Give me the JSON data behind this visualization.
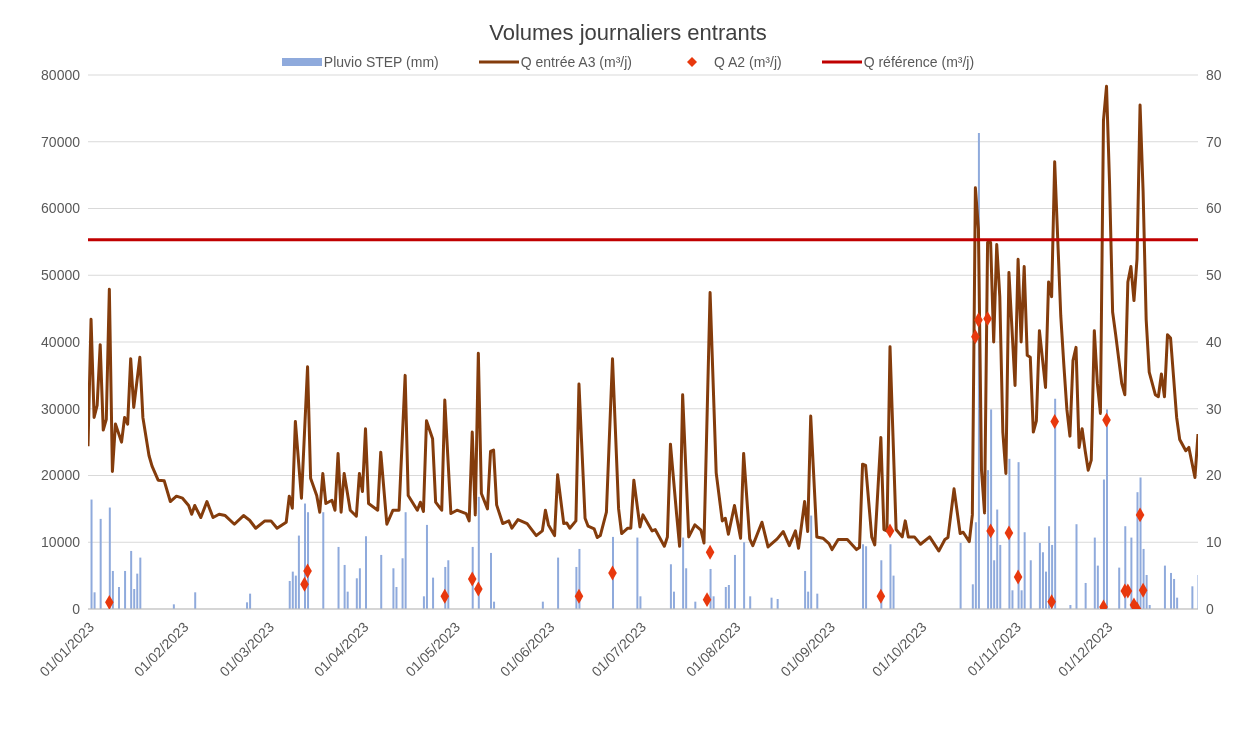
{
  "chart_data": {
    "type": "line",
    "title": "Volumes journaliers entrants",
    "xlim": [
      "2023-01-01",
      "2023-12-31"
    ],
    "xticks": [
      {
        "value": "2023-01-01",
        "label": "01/01/2023"
      },
      {
        "value": "2023-02-01",
        "label": "01/02/2023"
      },
      {
        "value": "2023-03-01",
        "label": "01/03/2023"
      },
      {
        "value": "2023-04-01",
        "label": "01/04/2023"
      },
      {
        "value": "2023-05-01",
        "label": "01/05/2023"
      },
      {
        "value": "2023-06-01",
        "label": "01/06/2023"
      },
      {
        "value": "2023-07-01",
        "label": "01/07/2023"
      },
      {
        "value": "2023-08-01",
        "label": "01/08/2023"
      },
      {
        "value": "2023-09-01",
        "label": "01/09/2023"
      },
      {
        "value": "2023-10-01",
        "label": "01/10/2023"
      },
      {
        "value": "2023-11-01",
        "label": "01/11/2023"
      },
      {
        "value": "2023-12-01",
        "label": "01/12/2023"
      }
    ],
    "ylim": [
      0,
      80000
    ],
    "yticks": [
      0,
      10000,
      20000,
      30000,
      40000,
      50000,
      60000,
      70000,
      80000
    ],
    "y2lim": [
      0,
      80
    ],
    "y2ticks": [
      0,
      10,
      20,
      30,
      40,
      50,
      60,
      70,
      80
    ],
    "grid": "y",
    "legend": "top",
    "marker": "none",
    "line_style": "solid",
    "series": [
      {
        "name": "Pluvio STEP (mm)",
        "type": "bar",
        "axis": "y2",
        "color": "#8faadc",
        "x": [
          "2023-01-02",
          "2023-01-03",
          "2023-01-05",
          "2023-01-08",
          "2023-01-09",
          "2023-01-11",
          "2023-01-13",
          "2023-01-15",
          "2023-01-16",
          "2023-01-17",
          "2023-01-18",
          "2023-01-29",
          "2023-02-05",
          "2023-02-22",
          "2023-02-23",
          "2023-03-08",
          "2023-03-09",
          "2023-03-10",
          "2023-03-11",
          "2023-03-13",
          "2023-03-14",
          "2023-03-19",
          "2023-03-24",
          "2023-03-26",
          "2023-03-27",
          "2023-03-30",
          "2023-03-31",
          "2023-04-02",
          "2023-04-07",
          "2023-04-11",
          "2023-04-12",
          "2023-04-14",
          "2023-04-15",
          "2023-04-21",
          "2023-04-22",
          "2023-04-24",
          "2023-04-28",
          "2023-04-29",
          "2023-05-07",
          "2023-05-09",
          "2023-05-13",
          "2023-05-14",
          "2023-05-30",
          "2023-06-04",
          "2023-06-10",
          "2023-06-11",
          "2023-06-22",
          "2023-06-30",
          "2023-07-01",
          "2023-07-11",
          "2023-07-12",
          "2023-07-15",
          "2023-07-16",
          "2023-07-19",
          "2023-07-24",
          "2023-07-25",
          "2023-07-29",
          "2023-07-30",
          "2023-08-01",
          "2023-08-04",
          "2023-08-06",
          "2023-08-13",
          "2023-08-15",
          "2023-08-24",
          "2023-08-25",
          "2023-08-26",
          "2023-08-28",
          "2023-09-12",
          "2023-09-13",
          "2023-09-18",
          "2023-09-21",
          "2023-09-22",
          "2023-10-14",
          "2023-10-18",
          "2023-10-19",
          "2023-10-20",
          "2023-10-23",
          "2023-10-24",
          "2023-10-25",
          "2023-10-26",
          "2023-10-27",
          "2023-10-30",
          "2023-10-31",
          "2023-11-02",
          "2023-11-03",
          "2023-11-04",
          "2023-11-06",
          "2023-11-09",
          "2023-11-10",
          "2023-11-11",
          "2023-11-12",
          "2023-11-13",
          "2023-11-14",
          "2023-11-19",
          "2023-11-21",
          "2023-11-24",
          "2023-11-27",
          "2023-11-28",
          "2023-11-30",
          "2023-12-01",
          "2023-12-05",
          "2023-12-07",
          "2023-12-09",
          "2023-12-11",
          "2023-12-12",
          "2023-12-13",
          "2023-12-14",
          "2023-12-15",
          "2023-12-20",
          "2023-12-22",
          "2023-12-23",
          "2023-12-24",
          "2023-12-29",
          "2023-12-31"
        ],
        "values": [
          16.4,
          2.5,
          13.5,
          15.2,
          5.7,
          3.3,
          5.7,
          8.7,
          3.0,
          5.3,
          7.7,
          0.7,
          2.5,
          1.0,
          2.3,
          4.2,
          5.6,
          5.0,
          11.0,
          15.8,
          14.5,
          14.5,
          9.3,
          6.6,
          2.6,
          4.6,
          6.1,
          10.9,
          8.1,
          6.1,
          3.3,
          7.6,
          14.5,
          1.9,
          12.6,
          4.7,
          6.3,
          7.3,
          9.3,
          16.8,
          8.4,
          1.1,
          1.1,
          7.7,
          6.3,
          9.0,
          10.8,
          10.7,
          1.9,
          6.7,
          2.6,
          10.7,
          6.1,
          1.1,
          6.0,
          1.9,
          3.3,
          3.6,
          8.1,
          10.0,
          1.9,
          1.7,
          1.5,
          5.7,
          2.6,
          14.0,
          2.3,
          9.7,
          9.4,
          7.3,
          9.7,
          5.0,
          9.9,
          3.7,
          13.0,
          71.3,
          20.8,
          29.9,
          7.3,
          14.9,
          9.6,
          22.5,
          2.8,
          22.0,
          2.8,
          11.5,
          7.3,
          9.9,
          8.5,
          5.6,
          12.4,
          9.6,
          31.5,
          0.6,
          12.7,
          3.9,
          10.7,
          6.5,
          19.4,
          29.9,
          6.2,
          12.4,
          10.7,
          17.5,
          19.7,
          9.0,
          5.1,
          0.6,
          6.5,
          5.4,
          4.5,
          1.7,
          3.4,
          5.1
        ]
      },
      {
        "name": "Q entrée A3 (m³/j)",
        "color": "#843c0c",
        "x": [
          "2023-01-01",
          "2023-01-02",
          "2023-01-03",
          "2023-01-04",
          "2023-01-05",
          "2023-01-06",
          "2023-01-07",
          "2023-01-08",
          "2023-01-09",
          "2023-01-10",
          "2023-01-12",
          "2023-01-13",
          "2023-01-14",
          "2023-01-15",
          "2023-01-16",
          "2023-01-18",
          "2023-01-19",
          "2023-01-21",
          "2023-01-22",
          "2023-01-24",
          "2023-01-26",
          "2023-01-28",
          "2023-01-30",
          "2023-02-01",
          "2023-02-03",
          "2023-02-04",
          "2023-02-05",
          "2023-02-07",
          "2023-02-09",
          "2023-02-11",
          "2023-02-13",
          "2023-02-15",
          "2023-02-18",
          "2023-02-21",
          "2023-02-23",
          "2023-02-25",
          "2023-02-28",
          "2023-03-02",
          "2023-03-04",
          "2023-03-07",
          "2023-03-08",
          "2023-03-09",
          "2023-03-10",
          "2023-03-12",
          "2023-03-14",
          "2023-03-15",
          "2023-03-17",
          "2023-03-18",
          "2023-03-19",
          "2023-03-20",
          "2023-03-22",
          "2023-03-23",
          "2023-03-24",
          "2023-03-25",
          "2023-03-26",
          "2023-03-28",
          "2023-03-30",
          "2023-03-31",
          "2023-04-01",
          "2023-04-02",
          "2023-04-03",
          "2023-04-06",
          "2023-04-07",
          "2023-04-09",
          "2023-04-11",
          "2023-04-13",
          "2023-04-15",
          "2023-04-16",
          "2023-04-19",
          "2023-04-20",
          "2023-04-21",
          "2023-04-22",
          "2023-04-24",
          "2023-04-25",
          "2023-04-27",
          "2023-04-28",
          "2023-04-30",
          "2023-05-02",
          "2023-05-05",
          "2023-05-06",
          "2023-05-07",
          "2023-05-08",
          "2023-05-09",
          "2023-05-10",
          "2023-05-12",
          "2023-05-13",
          "2023-05-14",
          "2023-05-15",
          "2023-05-17",
          "2023-05-19",
          "2023-05-20",
          "2023-05-22",
          "2023-05-25",
          "2023-05-28",
          "2023-05-30",
          "2023-05-31",
          "2023-06-01",
          "2023-06-03",
          "2023-06-04",
          "2023-06-06",
          "2023-06-07",
          "2023-06-08",
          "2023-06-10",
          "2023-06-11",
          "2023-06-13",
          "2023-06-14",
          "2023-06-16",
          "2023-06-17",
          "2023-06-18",
          "2023-06-20",
          "2023-06-22",
          "2023-06-24",
          "2023-06-25",
          "2023-06-27",
          "2023-06-28",
          "2023-06-29",
          "2023-07-01",
          "2023-07-02",
          "2023-07-05",
          "2023-07-06",
          "2023-07-09",
          "2023-07-10",
          "2023-07-11",
          "2023-07-13",
          "2023-07-14",
          "2023-07-15",
          "2023-07-17",
          "2023-07-19",
          "2023-07-21",
          "2023-07-22",
          "2023-07-24",
          "2023-07-26",
          "2023-07-28",
          "2023-07-29",
          "2023-07-30",
          "2023-08-01",
          "2023-08-03",
          "2023-08-04",
          "2023-08-06",
          "2023-08-07",
          "2023-08-10",
          "2023-08-12",
          "2023-08-15",
          "2023-08-17",
          "2023-08-19",
          "2023-08-21",
          "2023-08-22",
          "2023-08-24",
          "2023-08-25",
          "2023-08-26",
          "2023-08-28",
          "2023-08-30",
          "2023-09-01",
          "2023-09-02",
          "2023-09-04",
          "2023-09-07",
          "2023-09-10",
          "2023-09-11",
          "2023-09-12",
          "2023-09-13",
          "2023-09-15",
          "2023-09-16",
          "2023-09-18",
          "2023-09-19",
          "2023-09-20",
          "2023-09-21",
          "2023-09-23",
          "2023-09-25",
          "2023-09-26",
          "2023-09-27",
          "2023-09-29",
          "2023-10-01",
          "2023-10-04",
          "2023-10-07",
          "2023-10-09",
          "2023-10-10",
          "2023-10-12",
          "2023-10-14",
          "2023-10-15",
          "2023-10-17",
          "2023-10-18",
          "2023-10-19",
          "2023-10-20",
          "2023-10-21",
          "2023-10-22",
          "2023-10-23",
          "2023-10-24",
          "2023-10-25",
          "2023-10-26",
          "2023-10-27",
          "2023-10-28",
          "2023-10-29",
          "2023-10-30",
          "2023-11-01",
          "2023-11-02",
          "2023-11-03",
          "2023-11-04",
          "2023-11-05",
          "2023-11-06",
          "2023-11-07",
          "2023-11-08",
          "2023-11-09",
          "2023-11-11",
          "2023-11-12",
          "2023-11-13",
          "2023-11-14",
          "2023-11-16",
          "2023-11-17",
          "2023-11-18",
          "2023-11-19",
          "2023-11-20",
          "2023-11-21",
          "2023-11-22",
          "2023-11-23",
          "2023-11-24",
          "2023-11-25",
          "2023-11-26",
          "2023-11-27",
          "2023-11-28",
          "2023-11-29",
          "2023-11-30",
          "2023-12-01",
          "2023-12-02",
          "2023-12-03",
          "2023-12-04",
          "2023-12-06",
          "2023-12-07",
          "2023-12-08",
          "2023-12-09",
          "2023-12-10",
          "2023-12-11",
          "2023-12-12",
          "2023-12-13",
          "2023-12-14",
          "2023-12-15",
          "2023-12-17",
          "2023-12-18",
          "2023-12-19",
          "2023-12-20",
          "2023-12-21",
          "2023-12-22",
          "2023-12-24",
          "2023-12-25",
          "2023-12-27",
          "2023-12-28",
          "2023-12-30",
          "2023-12-31"
        ],
        "values": [
          24400,
          43400,
          28700,
          30500,
          39600,
          26800,
          28400,
          47900,
          20600,
          27700,
          25000,
          28700,
          27700,
          37500,
          30200,
          37700,
          28700,
          23000,
          21400,
          19300,
          19200,
          16100,
          16900,
          16600,
          15500,
          14200,
          15500,
          13700,
          16100,
          13700,
          14200,
          14000,
          12700,
          14000,
          13300,
          12100,
          13200,
          13200,
          12100,
          13000,
          16900,
          15100,
          28100,
          16600,
          36300,
          19600,
          17000,
          14500,
          20300,
          15800,
          16300,
          14800,
          23300,
          14500,
          20300,
          14800,
          13900,
          20300,
          17600,
          27000,
          15800,
          14800,
          23500,
          12700,
          14800,
          14800,
          35000,
          17000,
          14800,
          16000,
          14600,
          28200,
          25500,
          16000,
          14800,
          31300,
          14300,
          14800,
          14300,
          13200,
          26500,
          14100,
          38300,
          17300,
          15000,
          23600,
          23800,
          15600,
          12800,
          13200,
          12100,
          13400,
          12800,
          11000,
          11700,
          14800,
          12600,
          11000,
          20100,
          12800,
          12900,
          12100,
          13200,
          33700,
          13600,
          12400,
          12000,
          10700,
          11000,
          14500,
          37500,
          15000,
          11300,
          12100,
          12100,
          19300,
          12300,
          14100,
          11700,
          11900,
          9400,
          10800,
          24700,
          14300,
          9400,
          32100,
          10800,
          12600,
          11800,
          9900,
          47400,
          20400,
          13200,
          13600,
          11200,
          15500,
          10600,
          23300,
          10500,
          9500,
          13000,
          9300,
          10500,
          11600,
          9500,
          11700,
          9100,
          16100,
          11600,
          28900,
          10800,
          10600,
          9800,
          8900,
          10400,
          10400,
          8900,
          9200,
          21700,
          21500,
          10800,
          9600,
          25700,
          11900,
          11700,
          39300,
          11900,
          10800,
          13200,
          10800,
          10800,
          9700,
          10800,
          8700,
          10400,
          10700,
          18000,
          11300,
          11500,
          10100,
          14100,
          63100,
          56900,
          20800,
          14400,
          54900,
          54900,
          40000,
          54600,
          46800,
          26500,
          20300,
          50400,
          33500,
          52400,
          40000,
          51300,
          38000,
          37700,
          26500,
          28200,
          41700,
          33200,
          49000,
          46800,
          67000,
          43900,
          36600,
          29900,
          25900,
          37200,
          39200,
          24200,
          27000,
          23700,
          20800,
          22300,
          41700,
          33800,
          29300,
          73200,
          78300,
          63700,
          44500,
          41100,
          33800,
          32100,
          49000,
          51300,
          46200,
          52400,
          75500,
          62500,
          43400,
          35500,
          32100,
          31800,
          35200,
          31800,
          41100,
          40600,
          28700,
          25400,
          23700,
          24200,
          19700,
          26200
        ]
      },
      {
        "name": "Q A2 (m³/j)",
        "type": "scatter",
        "marker": "diamond",
        "color": "#e8380d",
        "x": [
          "2023-01-08",
          "2023-03-13",
          "2023-03-14",
          "2023-04-28",
          "2023-05-07",
          "2023-05-09",
          "2023-06-11",
          "2023-06-22",
          "2023-07-23",
          "2023-07-24",
          "2023-09-18",
          "2023-09-21",
          "2023-10-19",
          "2023-10-20",
          "2023-10-23",
          "2023-10-24",
          "2023-10-30",
          "2023-11-02",
          "2023-11-13",
          "2023-11-14",
          "2023-11-30",
          "2023-12-01",
          "2023-12-07",
          "2023-12-08",
          "2023-12-10",
          "2023-12-11",
          "2023-12-12",
          "2023-12-13"
        ],
        "values": [
          1000,
          3700,
          5700,
          1900,
          4500,
          3000,
          1900,
          5400,
          1400,
          8500,
          1900,
          11700,
          40800,
          43300,
          43500,
          11700,
          11400,
          4800,
          1100,
          28100,
          300,
          28300,
          2700,
          2700,
          600,
          0,
          14100,
          2800
        ]
      },
      {
        "name": "Q référence (m³/j)",
        "color": "#c00000",
        "x": [
          "2023-01-01",
          "2023-12-31"
        ],
        "values": [
          55300,
          55300
        ]
      }
    ]
  }
}
